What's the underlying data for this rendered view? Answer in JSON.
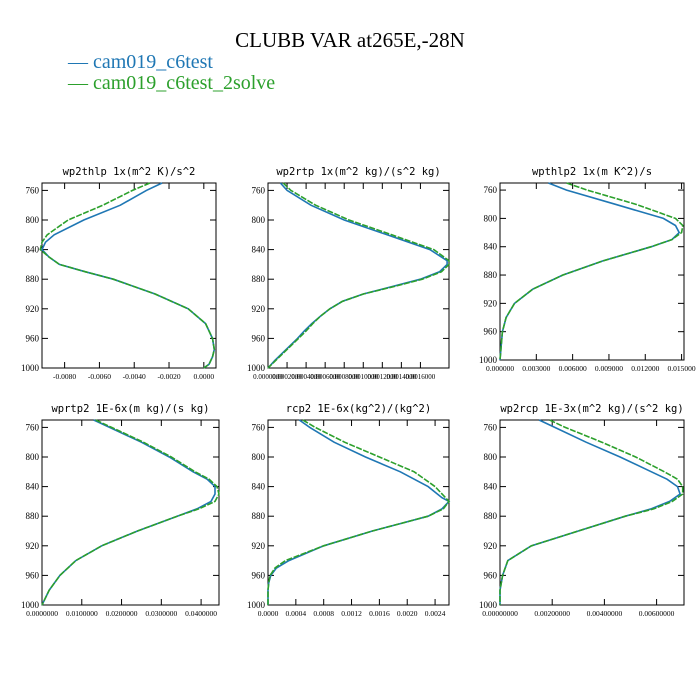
{
  "title": "CLUBB VAR at265E,-28N",
  "legend": [
    {
      "label": "cam019_c6test",
      "color": "#1f77b4"
    },
    {
      "label": "cam019_c6test_2solve",
      "color": "#2ca02c"
    }
  ],
  "chart_data": [
    {
      "type": "line",
      "title": "wp2thlp  1x(m^2 K)/s^2",
      "xlim": [
        -0.0093,
        0.0007
      ],
      "ylim": [
        1000,
        750
      ],
      "yticks": [
        760,
        800,
        840,
        880,
        920,
        960,
        1000
      ],
      "xticks": [
        -0.008,
        -0.006,
        -0.004,
        -0.002,
        0.0
      ],
      "xtick_labels": [
        "-0.0080",
        "-0.0060",
        "-0.0040",
        "-0.0020",
        "0.0000"
      ],
      "y": [
        750,
        760,
        780,
        800,
        820,
        830,
        840,
        850,
        860,
        870,
        880,
        900,
        920,
        940,
        960,
        975,
        985,
        995,
        1000
      ],
      "series": [
        {
          "name": "cam019_c6test",
          "values": [
            -0.0024,
            -0.0033,
            -0.0048,
            -0.0069,
            -0.0086,
            -0.0091,
            -0.0093,
            -0.0089,
            -0.0083,
            -0.0068,
            -0.0052,
            -0.0028,
            -0.0009,
            0.0001,
            0.0005,
            0.0006,
            0.0005,
            0.0003,
            0.0
          ]
        },
        {
          "name": "cam019_c6test_2solve",
          "values": [
            -0.0031,
            -0.0041,
            -0.0058,
            -0.0078,
            -0.009,
            -0.0093,
            -0.0094,
            -0.0089,
            -0.0083,
            -0.0068,
            -0.0052,
            -0.0028,
            -0.0009,
            0.0001,
            0.0005,
            0.0006,
            0.0005,
            0.0003,
            0.0
          ]
        }
      ]
    },
    {
      "type": "line",
      "title": "wp2rtp  1x(m^2 kg)/(s^2 kg)",
      "xlim": [
        0.0,
        0.0019
      ],
      "ylim": [
        1000,
        750
      ],
      "yticks": [
        760,
        800,
        840,
        880,
        920,
        960,
        1000
      ],
      "xticks": [
        0.0,
        0.0002,
        0.0004,
        0.0006,
        0.0008,
        0.001,
        0.0012,
        0.0014,
        0.0016
      ],
      "xtick_labels": [
        "0.0000000",
        "0.0002000",
        "0.0004000",
        "0.0006000",
        "0.0008000",
        "0.0010000",
        "0.0012000",
        "0.0014000",
        "0.0016000"
      ],
      "y": [
        750,
        760,
        780,
        800,
        820,
        840,
        855,
        860,
        870,
        880,
        890,
        900,
        910,
        920,
        930,
        940,
        950,
        960,
        970,
        980,
        990,
        1000
      ],
      "series": [
        {
          "name": "cam019_c6test",
          "values": [
            0.00013,
            0.0002,
            0.00045,
            0.0008,
            0.00125,
            0.0017,
            0.00188,
            0.00188,
            0.0018,
            0.0016,
            0.0013,
            0.001,
            0.00078,
            0.00065,
            0.00055,
            0.00046,
            0.00038,
            0.00031,
            0.00023,
            0.00015,
            7e-05,
            0.0
          ]
        },
        {
          "name": "cam019_c6test_2solve",
          "values": [
            0.00016,
            0.00024,
            0.0005,
            0.00085,
            0.0013,
            0.00174,
            0.0019,
            0.0019,
            0.00182,
            0.00162,
            0.00132,
            0.001,
            0.00078,
            0.00065,
            0.00055,
            0.00047,
            0.0004,
            0.00032,
            0.00024,
            0.00016,
            8e-05,
            0.0
          ]
        }
      ]
    },
    {
      "type": "line",
      "title": "wpthlp2  1x(m K^2)/s",
      "xlim": [
        0.0,
        0.0152
      ],
      "ylim": [
        1000,
        750
      ],
      "yticks": [
        760,
        800,
        840,
        880,
        920,
        960,
        1000
      ],
      "xticks": [
        0.0,
        0.003,
        0.006,
        0.009,
        0.012,
        0.015
      ],
      "xtick_labels": [
        "0.000000",
        "0.003000",
        "0.006000",
        "0.009000",
        "0.012000",
        "0.015000"
      ],
      "y": [
        750,
        760,
        780,
        800,
        810,
        820,
        830,
        840,
        860,
        880,
        900,
        920,
        940,
        960,
        980,
        1000
      ],
      "series": [
        {
          "name": "cam019_c6test",
          "values": [
            0.004,
            0.0055,
            0.0095,
            0.0135,
            0.0145,
            0.0148,
            0.0142,
            0.0125,
            0.0085,
            0.0052,
            0.0027,
            0.0012,
            0.0005,
            0.0002,
            0.0001,
            0.0
          ]
        },
        {
          "name": "cam019_c6test_2solve",
          "values": [
            0.0055,
            0.0072,
            0.0112,
            0.0145,
            0.0151,
            0.015,
            0.0142,
            0.0125,
            0.0085,
            0.0052,
            0.0027,
            0.0012,
            0.0005,
            0.0002,
            0.0001,
            0.0
          ]
        }
      ]
    },
    {
      "type": "line",
      "title": "wprtp2  1E-6x(m kg)/(s kg)",
      "xlim": [
        0.0,
        0.0445
      ],
      "ylim": [
        1000,
        750
      ],
      "yticks": [
        760,
        800,
        840,
        880,
        920,
        960,
        1000
      ],
      "xticks": [
        0.0,
        0.01,
        0.02,
        0.03,
        0.04
      ],
      "xtick_labels": [
        "0.0000000",
        "0.0100000",
        "0.0200000",
        "0.0300000",
        "0.0400000"
      ],
      "y": [
        750,
        760,
        780,
        800,
        820,
        830,
        840,
        850,
        860,
        870,
        880,
        900,
        920,
        940,
        960,
        980,
        1000
      ],
      "series": [
        {
          "name": "cam019_c6test",
          "values": [
            0.013,
            0.017,
            0.025,
            0.032,
            0.038,
            0.0415,
            0.0435,
            0.0435,
            0.0425,
            0.039,
            0.034,
            0.024,
            0.015,
            0.0085,
            0.0045,
            0.0018,
            0.0
          ]
        },
        {
          "name": "cam019_c6test_2solve",
          "values": [
            0.0135,
            0.0175,
            0.0255,
            0.0325,
            0.0385,
            0.042,
            0.044,
            0.0445,
            0.0435,
            0.0395,
            0.034,
            0.024,
            0.015,
            0.0085,
            0.0045,
            0.0018,
            0.0
          ]
        }
      ]
    },
    {
      "type": "line",
      "title": "rcp2  1E-6x(kg^2)/(kg^2)",
      "xlim": [
        0.0,
        0.0026
      ],
      "ylim": [
        1000,
        750
      ],
      "yticks": [
        760,
        800,
        840,
        880,
        920,
        960,
        1000
      ],
      "xticks": [
        0.0,
        0.0004,
        0.0008,
        0.0012,
        0.0016,
        0.002,
        0.0024
      ],
      "xtick_labels": [
        "0.0000",
        "0.0004",
        "0.0008",
        "0.0012",
        "0.0016",
        "0.0020",
        "0.0024"
      ],
      "y": [
        750,
        760,
        780,
        800,
        820,
        840,
        855,
        860,
        870,
        880,
        890,
        900,
        920,
        940,
        950,
        960,
        970,
        980,
        1000
      ],
      "series": [
        {
          "name": "cam019_c6test",
          "values": [
            0.00045,
            0.0006,
            0.00095,
            0.0014,
            0.0019,
            0.0023,
            0.0025,
            0.0026,
            0.0025,
            0.0023,
            0.0019,
            0.0015,
            0.0008,
            0.0003,
            0.00012,
            4e-05,
            1e-05,
            0.0,
            0.0
          ]
        },
        {
          "name": "cam019_c6test_2solve",
          "values": [
            0.0005,
            0.00068,
            0.0011,
            0.0016,
            0.0021,
            0.0024,
            0.00255,
            0.0026,
            0.00252,
            0.0023,
            0.0019,
            0.0015,
            0.0008,
            0.00025,
            0.0001,
            3e-05,
            1e-05,
            0.0,
            0.0
          ]
        }
      ]
    },
    {
      "type": "line",
      "title": "wp2rcp  1E-3x(m^2 kg)/(s^2 kg)",
      "xlim": [
        0.0,
        0.00705
      ],
      "ylim": [
        1000,
        750
      ],
      "yticks": [
        760,
        800,
        840,
        880,
        920,
        960,
        1000
      ],
      "xticks": [
        0.0,
        0.002,
        0.004,
        0.006
      ],
      "xtick_labels": [
        "0.00000000",
        "0.00200000",
        "0.00400000",
        "0.00600000"
      ],
      "y": [
        750,
        760,
        780,
        800,
        820,
        830,
        840,
        850,
        860,
        870,
        880,
        900,
        920,
        940,
        960,
        980,
        1000
      ],
      "series": [
        {
          "name": "cam019_c6test",
          "values": [
            0.0015,
            0.0021,
            0.0033,
            0.0046,
            0.0058,
            0.0064,
            0.0068,
            0.0069,
            0.0065,
            0.0058,
            0.0048,
            0.003,
            0.0012,
            0.0003,
            0.0001,
            0.0,
            0.0
          ]
        },
        {
          "name": "cam019_c6test_2solve",
          "values": [
            0.0019,
            0.0025,
            0.0039,
            0.0052,
            0.0063,
            0.0068,
            0.007,
            0.007,
            0.0066,
            0.0059,
            0.0048,
            0.003,
            0.0012,
            0.0003,
            0.0001,
            0.0,
            0.0
          ]
        }
      ]
    }
  ]
}
